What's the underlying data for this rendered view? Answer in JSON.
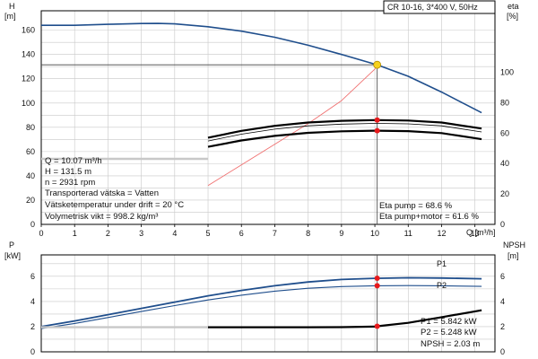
{
  "title_box": "CR 10-16, 3*400 V, 50Hz",
  "colors": {
    "blue": "#1f4e8c",
    "black": "#000000",
    "red": "#e8191b",
    "thin_red": "#f07070",
    "yellow": "#f6d21e",
    "grid": "#c8c8c8",
    "gray": "#c8c8c8"
  },
  "top": {
    "left_axis_label": "H",
    "left_axis_unit": "[m]",
    "right_axis_label": "eta",
    "right_axis_unit": "[%]",
    "x_axis_label": "Q [m³/h]",
    "x_ticks": [
      "0",
      "1",
      "2",
      "3",
      "4",
      "5",
      "6",
      "7",
      "8",
      "9",
      "10",
      "11",
      "12",
      "13"
    ],
    "left_ticks": [
      "0",
      "20",
      "40",
      "60",
      "80",
      "100",
      "120",
      "140",
      "160"
    ],
    "right_ticks": [
      "0",
      "20",
      "40",
      "60",
      "80",
      "100"
    ],
    "info_lines": [
      "Q = 10.07 m³/h",
      "H = 131.5 m",
      "n = 2931 rpm",
      "Transporterad vätska = Vatten",
      "Vätsketemperatur under drift = 20 °C",
      "Volymetrisk vikt = 998.2 kg/m³"
    ],
    "eta_lines": [
      "Eta pump = 68.6 %",
      "Eta pump+motor = 61.6 %"
    ]
  },
  "bottom": {
    "left_axis_label": "P",
    "left_axis_unit": "[kW]",
    "right_axis_label": "NPSH",
    "right_axis_unit": "[m]",
    "left_ticks": [
      "0",
      "2",
      "4",
      "6"
    ],
    "right_ticks": [
      "0",
      "2",
      "4",
      "6"
    ],
    "p1_label": "P1",
    "p2_label": "P2",
    "readouts": [
      "P1 = 5.842 kW",
      "P2 = 5.248 kW",
      "NPSH = 2.03 m"
    ]
  },
  "chart_data": [
    {
      "type": "line",
      "xlim": [
        0,
        13.6
      ],
      "ylim_left": [
        0,
        176
      ],
      "ylim_right": [
        0,
        100
      ],
      "grid": true,
      "duty_point": {
        "q": 10.07,
        "h": 131.5
      },
      "series": [
        {
          "name": "H",
          "axis": "left",
          "color": "blue",
          "x": [
            0,
            1,
            2,
            3,
            3.5,
            4,
            5,
            6,
            7,
            8,
            9,
            10,
            10.07,
            11,
            12,
            13.2
          ],
          "y": [
            164,
            164,
            164.8,
            165.5,
            165.6,
            165.2,
            162.8,
            159.2,
            154.2,
            147.6,
            140,
            132,
            131.5,
            122,
            109,
            92
          ]
        },
        {
          "name": "",
          "axis": "left",
          "color": "gray",
          "x": [
            0,
            5
          ],
          "y": [
            54,
            54
          ]
        },
        {
          "axis": "left",
          "color": "thin_red",
          "x": [
            5,
            6,
            7,
            8,
            9,
            10,
            10.07
          ],
          "y": [
            32,
            49,
            66,
            83,
            102,
            128,
            131.5
          ]
        },
        {
          "name": "Eta pump",
          "axis": "right",
          "color": "black",
          "x": [
            5,
            6,
            7,
            8,
            9,
            10,
            10.07,
            11,
            12,
            13.2
          ],
          "y": [
            57,
            61.5,
            64.8,
            67,
            68.1,
            68.6,
            68.6,
            68.3,
            67,
            63
          ]
        },
        {
          "name": "Eta pump+motor",
          "axis": "right",
          "color": "black",
          "x": [
            5,
            6,
            7,
            8,
            9,
            10,
            10.07,
            11,
            12,
            13.2
          ],
          "y": [
            51,
            55.2,
            58.2,
            60.2,
            61.2,
            61.6,
            61.6,
            61.3,
            60,
            56
          ]
        }
      ]
    },
    {
      "type": "line",
      "xlim": [
        0,
        13.6
      ],
      "ylim_left": [
        0,
        7.7
      ],
      "ylim_right": [
        0,
        7.7
      ],
      "grid": true,
      "series": [
        {
          "name": "P1",
          "axis": "left",
          "color": "blue",
          "x": [
            0,
            1,
            2,
            3,
            4,
            5,
            6,
            7,
            8,
            9,
            10,
            10.07,
            11,
            12,
            13.2
          ],
          "y": [
            2.0,
            2.45,
            2.95,
            3.45,
            3.95,
            4.45,
            4.88,
            5.25,
            5.55,
            5.75,
            5.84,
            5.842,
            5.88,
            5.86,
            5.8
          ]
        },
        {
          "name": "P2",
          "axis": "left",
          "color": "blue",
          "x": [
            0,
            1,
            2,
            3,
            4,
            5,
            6,
            7,
            8,
            9,
            10,
            10.07,
            11,
            12,
            13.2
          ],
          "y": [
            1.85,
            2.25,
            2.72,
            3.2,
            3.67,
            4.12,
            4.5,
            4.82,
            5.05,
            5.18,
            5.245,
            5.248,
            5.26,
            5.25,
            5.2
          ]
        },
        {
          "name": "",
          "axis": "right",
          "color": "gray",
          "x": [
            0,
            5
          ],
          "y": [
            1.95,
            1.95
          ]
        },
        {
          "name": "NPSH",
          "axis": "right",
          "color": "black",
          "x": [
            5,
            6,
            7,
            8,
            9,
            10,
            10.07,
            11,
            12,
            13.2
          ],
          "y": [
            1.95,
            1.95,
            1.95,
            1.95,
            1.96,
            2.0,
            2.03,
            2.3,
            2.75,
            3.3
          ]
        }
      ]
    }
  ]
}
